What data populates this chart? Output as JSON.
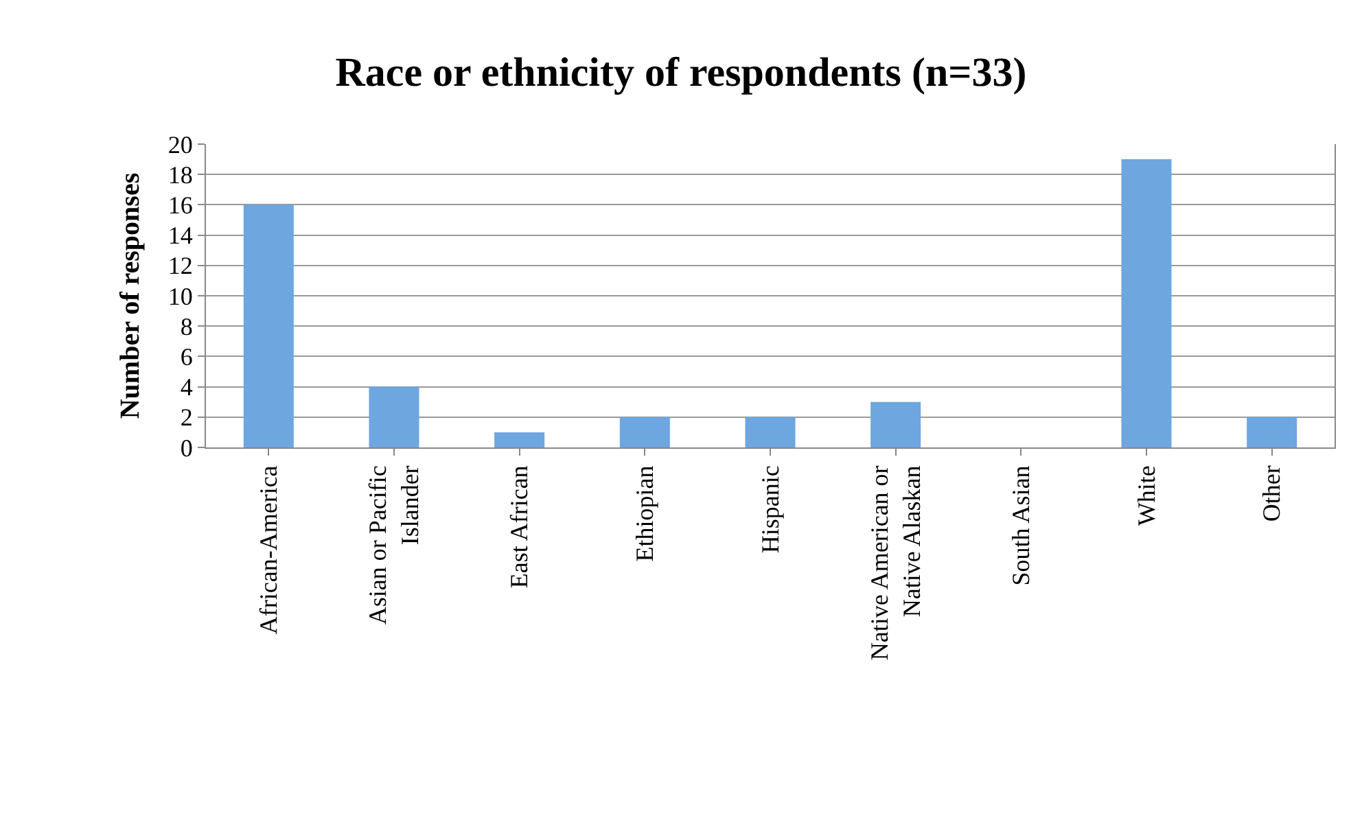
{
  "chart_data": {
    "type": "bar",
    "title": "Race or ethnicity of respondents (n=33)",
    "ylabel": "Number of responses",
    "categories": [
      "African-America",
      "Asian or Pacific Islander",
      "East African",
      "Ethiopian",
      "Hispanic",
      "Native American or Native Alaskan",
      "South Asian",
      "White",
      "Other"
    ],
    "values": [
      16,
      4,
      1,
      2,
      2,
      3,
      0,
      19,
      2
    ],
    "color": "#6ea6e0",
    "ylim": [
      0,
      20
    ],
    "yticks": [
      0,
      2,
      4,
      6,
      8,
      10,
      12,
      14,
      16,
      18,
      20
    ],
    "grid": "y"
  }
}
